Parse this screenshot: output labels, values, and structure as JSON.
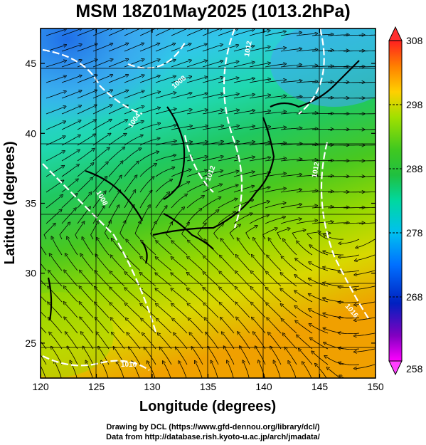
{
  "title": "MSM 18Z01May2025 (1013.2hPa)",
  "x_axis": {
    "label": "Longitude (degrees)",
    "ticks": [
      "120",
      "125",
      "130",
      "135",
      "140",
      "145",
      "150"
    ],
    "range": [
      120,
      150
    ]
  },
  "y_axis": {
    "label": "Latitude  (degrees)",
    "ticks": [
      "25",
      "30",
      "35",
      "40",
      "45"
    ],
    "range": [
      22.5,
      47.5
    ]
  },
  "colorbar": {
    "ticks": [
      "308",
      "298",
      "288",
      "278",
      "268",
      "258"
    ],
    "range": [
      258,
      308
    ],
    "colors": [
      "#ff00ff",
      "#8000c0",
      "#0020c0",
      "#0060ff",
      "#00b0ff",
      "#00e0e0",
      "#00d080",
      "#20c020",
      "#60d000",
      "#c0e000",
      "#ffd000",
      "#ff9000",
      "#ff3000",
      "#ff0000"
    ]
  },
  "contour_labels": [
    "1004",
    "1008",
    "1012",
    "1016",
    "1012",
    "1008",
    "1016",
    "1012"
  ],
  "credits": {
    "line1": "Drawing by DCL (https://www.gfd-dennou.org/library/dcl/)",
    "line2": "Data from http://database.rish.kyoto-u.ac.jp/arch/jmadata/"
  }
}
